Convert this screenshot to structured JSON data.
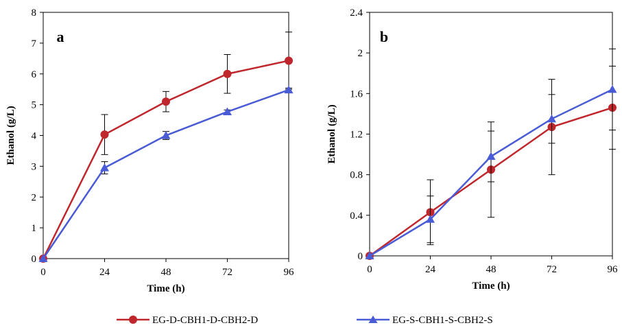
{
  "chart_data": [
    {
      "type": "line",
      "panel_label": "a",
      "xlabel": "Time (h)",
      "ylabel": "Ethanol (g/L)",
      "x": [
        0,
        24,
        48,
        72,
        96
      ],
      "xticks": [
        "0",
        "24",
        "48",
        "72",
        "96"
      ],
      "yticks": [
        "0",
        "1",
        "2",
        "3",
        "4",
        "5",
        "6",
        "7",
        "8"
      ],
      "xlim": [
        0,
        96
      ],
      "ylim": [
        0,
        8
      ],
      "grid": false,
      "series": [
        {
          "name": "EG-D-CBH1-D-CBH2-D",
          "color": "#c0272d",
          "marker": "circle",
          "values": [
            0,
            4.03,
            5.1,
            6.0,
            6.43
          ],
          "errors": [
            0,
            0.65,
            0.33,
            0.63,
            0.93
          ]
        },
        {
          "name": "EG-S-CBH1-S-CBH2-S",
          "color": "#4a5bd6",
          "marker": "triangle",
          "values": [
            0,
            2.95,
            4.0,
            4.77,
            5.48
          ],
          "errors": [
            0,
            0.2,
            0.13,
            0.06,
            0.06
          ]
        }
      ]
    },
    {
      "type": "line",
      "panel_label": "b",
      "xlabel": "Time (h)",
      "ylabel": "Ethanol (g/L)",
      "x": [
        0,
        24,
        48,
        72,
        96
      ],
      "xticks": [
        "0",
        "24",
        "48",
        "72",
        "96"
      ],
      "yticks": [
        "0",
        "0.4",
        "0.8",
        "1.2",
        "1.6",
        "2",
        "2.4"
      ],
      "xlim": [
        0,
        96
      ],
      "ylim": [
        0,
        2.4
      ],
      "grid": false,
      "series": [
        {
          "name": "EG-D-CBH1-D-CBH2-D",
          "color": "#c0272d",
          "marker": "circle",
          "values": [
            0,
            0.43,
            0.85,
            1.27,
            1.46
          ],
          "errors": [
            0,
            0.32,
            0.47,
            0.47,
            0.41
          ]
        },
        {
          "name": "EG-S-CBH1-S-CBH2-S",
          "color": "#4a5bd6",
          "marker": "triangle",
          "values": [
            0,
            0.36,
            0.98,
            1.35,
            1.64
          ],
          "errors": [
            0,
            0.23,
            0.25,
            0.24,
            0.4
          ]
        }
      ]
    }
  ],
  "legend": {
    "placement": "bottom",
    "entries": [
      "EG-D-CBH1-D-CBH2-D",
      "EG-S-CBH1-S-CBH2-S"
    ]
  }
}
